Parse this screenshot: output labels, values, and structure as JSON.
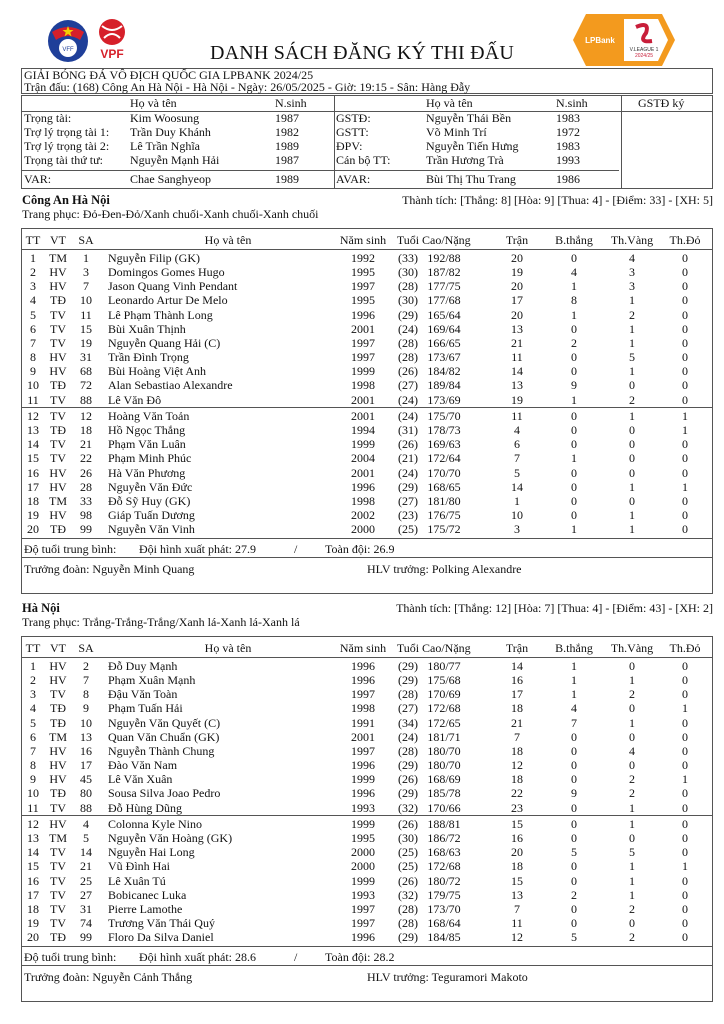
{
  "logos": {
    "vff": "VFF",
    "vpf": "VPF",
    "league_bank": "LPBank",
    "league_name": "V.LEAGUE 1",
    "league_season": "2024/25"
  },
  "title": "DANH SÁCH ĐĂNG KÝ THI ĐẤU",
  "competition": "GIẢI BÓNG ĐÁ VÔ ĐỊCH QUỐC GIA LPBANK 2024/25",
  "match_info": "Trận đấu: (168) Công An Hà Nội - Hà Nội - Ngày: 26/05/2025 - Giờ: 19:15 - Sân: Hàng Đẫy",
  "officials": {
    "headers": {
      "name": "Họ và tên",
      "birth": "N.sinh",
      "sign": "GSTĐ ký"
    },
    "left": [
      {
        "role": "Trọng tài:",
        "name": "Kim Woosung",
        "birth": "1987"
      },
      {
        "role": "Trợ lý trọng tài 1:",
        "name": "Trần Duy Khánh",
        "birth": "1982"
      },
      {
        "role": "Trợ lý trọng tài 2:",
        "name": "Lê Trần Nghĩa",
        "birth": "1989"
      },
      {
        "role": "Trọng tài thứ tư:",
        "name": "Nguyễn Mạnh Hải",
        "birth": "1987"
      },
      {
        "role": "VAR:",
        "name": "Chae Sanghyeop",
        "birth": "1989"
      }
    ],
    "right": [
      {
        "role": "GSTĐ:",
        "name": "Nguyễn Thái Bền",
        "birth": "1983"
      },
      {
        "role": "GSTT:",
        "name": "Võ Minh Trí",
        "birth": "1972"
      },
      {
        "role": "ĐPV:",
        "name": "Nguyễn Tiến Hưng",
        "birth": "1983"
      },
      {
        "role": "Cán bộ TT:",
        "name": "Trần Hương Trà",
        "birth": "1993"
      },
      {
        "role": "AVAR:",
        "name": "Bùi Thị Thu Trang",
        "birth": "1986"
      }
    ]
  },
  "columns": [
    "TT",
    "VT",
    "SA",
    "Họ và tên",
    "Năm sinh",
    "Tuổi",
    "Cao/Nặng",
    "Trận",
    "B.thắng",
    "Th.Vàng",
    "Th.Đỏ"
  ],
  "teams": [
    {
      "name": "Công An Hà Nội",
      "record": "Thành tích: [Thắng: 8] [Hòa: 9] [Thua: 4] - [Điểm: 33] - [XH: 5]",
      "kit": "Trang phục: Đỏ-Đen-Đỏ/Xanh chuối-Xanh chuối-Xanh chuối",
      "starters": [
        [
          "1",
          "TM",
          "1",
          "Nguyễn Filip (GK)",
          "1992",
          "(33)",
          "192/88",
          "20",
          "0",
          "4",
          "0"
        ],
        [
          "2",
          "HV",
          "3",
          "Domingos Gomes Hugo",
          "1995",
          "(30)",
          "187/82",
          "19",
          "4",
          "3",
          "0"
        ],
        [
          "3",
          "HV",
          "7",
          "Jason Quang Vinh Pendant",
          "1997",
          "(28)",
          "177/75",
          "20",
          "1",
          "3",
          "0"
        ],
        [
          "4",
          "TĐ",
          "10",
          "Leonardo Artur De Melo",
          "1995",
          "(30)",
          "177/68",
          "17",
          "8",
          "1",
          "0"
        ],
        [
          "5",
          "TV",
          "11",
          "Lê Phạm Thành Long",
          "1996",
          "(29)",
          "165/64",
          "20",
          "1",
          "2",
          "0"
        ],
        [
          "6",
          "TV",
          "15",
          "Bùi Xuân Thịnh",
          "2001",
          "(24)",
          "169/64",
          "13",
          "0",
          "1",
          "0"
        ],
        [
          "7",
          "TV",
          "19",
          "Nguyễn Quang Hải (C)",
          "1997",
          "(28)",
          "166/65",
          "21",
          "2",
          "1",
          "0"
        ],
        [
          "8",
          "HV",
          "31",
          "Trần Đình Trọng",
          "1997",
          "(28)",
          "173/67",
          "11",
          "0",
          "5",
          "0"
        ],
        [
          "9",
          "HV",
          "68",
          "Bùi Hoàng Việt Anh",
          "1999",
          "(26)",
          "184/82",
          "14",
          "0",
          "1",
          "0"
        ],
        [
          "10",
          "TĐ",
          "72",
          "Alan Sebastiao Alexandre",
          "1998",
          "(27)",
          "189/84",
          "13",
          "9",
          "0",
          "0"
        ],
        [
          "11",
          "TV",
          "88",
          "Lê Văn Đô",
          "2001",
          "(24)",
          "173/69",
          "19",
          "1",
          "2",
          "0"
        ]
      ],
      "subs": [
        [
          "12",
          "TV",
          "12",
          "Hoàng Văn Toản",
          "2001",
          "(24)",
          "175/70",
          "11",
          "0",
          "1",
          "1"
        ],
        [
          "13",
          "TĐ",
          "18",
          "Hồ Ngọc Thắng",
          "1994",
          "(31)",
          "178/73",
          "4",
          "0",
          "0",
          "1"
        ],
        [
          "14",
          "TV",
          "21",
          "Phạm Văn Luân",
          "1999",
          "(26)",
          "169/63",
          "6",
          "0",
          "0",
          "0"
        ],
        [
          "15",
          "TV",
          "22",
          "Phạm Minh Phúc",
          "2004",
          "(21)",
          "172/64",
          "7",
          "1",
          "0",
          "0"
        ],
        [
          "16",
          "HV",
          "26",
          "Hà Văn Phương",
          "2001",
          "(24)",
          "170/70",
          "5",
          "0",
          "0",
          "0"
        ],
        [
          "17",
          "HV",
          "28",
          "Nguyễn Văn Đức",
          "1996",
          "(29)",
          "168/65",
          "14",
          "0",
          "1",
          "1"
        ],
        [
          "18",
          "TM",
          "33",
          "Đỗ Sỹ Huy (GK)",
          "1998",
          "(27)",
          "181/80",
          "1",
          "0",
          "0",
          "0"
        ],
        [
          "19",
          "HV",
          "98",
          "Giáp Tuấn Dương",
          "2002",
          "(23)",
          "176/75",
          "10",
          "0",
          "1",
          "0"
        ],
        [
          "20",
          "TĐ",
          "99",
          "Nguyễn Văn Vinh",
          "2000",
          "(25)",
          "175/72",
          "3",
          "1",
          "1",
          "0"
        ]
      ],
      "avg_label": "Độ tuổi trung bình:",
      "avg_start": "Đội hình xuất phát: 27.9",
      "avg_sep": "/",
      "avg_all": "Toàn đội: 26.9",
      "manager": "Trưởng đoàn: Nguyễn Minh Quang",
      "coach": "HLV trưởng: Polking Alexandre"
    },
    {
      "name": "Hà Nội",
      "record": "Thành tích: [Thắng: 12] [Hòa: 7] [Thua: 4] - [Điểm: 43] - [XH: 2]",
      "kit": "Trang phục: Trắng-Trắng-Trắng/Xanh lá-Xanh lá-Xanh lá",
      "starters": [
        [
          "1",
          "HV",
          "2",
          "Đỗ Duy Mạnh",
          "1996",
          "(29)",
          "180/77",
          "14",
          "1",
          "0",
          "0"
        ],
        [
          "2",
          "HV",
          "7",
          "Phạm Xuân Mạnh",
          "1996",
          "(29)",
          "175/68",
          "16",
          "1",
          "1",
          "0"
        ],
        [
          "3",
          "TV",
          "8",
          "Đậu Văn Toàn",
          "1997",
          "(28)",
          "170/69",
          "17",
          "1",
          "2",
          "0"
        ],
        [
          "4",
          "TĐ",
          "9",
          "Phạm Tuấn Hải",
          "1998",
          "(27)",
          "172/68",
          "18",
          "4",
          "0",
          "1"
        ],
        [
          "5",
          "TĐ",
          "10",
          "Nguyễn Văn Quyết (C)",
          "1991",
          "(34)",
          "172/65",
          "21",
          "7",
          "1",
          "0"
        ],
        [
          "6",
          "TM",
          "13",
          "Quan Văn Chuẩn (GK)",
          "2001",
          "(24)",
          "181/71",
          "7",
          "0",
          "0",
          "0"
        ],
        [
          "7",
          "HV",
          "16",
          "Nguyễn Thành Chung",
          "1997",
          "(28)",
          "180/70",
          "18",
          "0",
          "4",
          "0"
        ],
        [
          "8",
          "HV",
          "17",
          "Đào Văn Nam",
          "1996",
          "(29)",
          "180/70",
          "12",
          "0",
          "0",
          "0"
        ],
        [
          "9",
          "HV",
          "45",
          "Lê Văn Xuân",
          "1999",
          "(26)",
          "168/69",
          "18",
          "0",
          "2",
          "1"
        ],
        [
          "10",
          "TĐ",
          "80",
          "Sousa Silva Joao Pedro",
          "1996",
          "(29)",
          "185/78",
          "22",
          "9",
          "2",
          "0"
        ],
        [
          "11",
          "TV",
          "88",
          "Đỗ Hùng Dũng",
          "1993",
          "(32)",
          "170/66",
          "23",
          "0",
          "1",
          "0"
        ]
      ],
      "subs": [
        [
          "12",
          "HV",
          "4",
          "Colonna Kyle Nino",
          "1999",
          "(26)",
          "188/81",
          "15",
          "0",
          "1",
          "0"
        ],
        [
          "13",
          "TM",
          "5",
          "Nguyễn Văn Hoàng (GK)",
          "1995",
          "(30)",
          "186/72",
          "16",
          "0",
          "0",
          "0"
        ],
        [
          "14",
          "TV",
          "14",
          "Nguyễn Hai Long",
          "2000",
          "(25)",
          "168/63",
          "20",
          "5",
          "5",
          "0"
        ],
        [
          "15",
          "TV",
          "21",
          "Vũ Đình Hai",
          "2000",
          "(25)",
          "172/68",
          "18",
          "0",
          "1",
          "1"
        ],
        [
          "16",
          "TV",
          "25",
          "Lê Xuân Tú",
          "1999",
          "(26)",
          "180/72",
          "15",
          "0",
          "1",
          "0"
        ],
        [
          "17",
          "TV",
          "27",
          "Bobicanec Luka",
          "1993",
          "(32)",
          "179/75",
          "13",
          "2",
          "1",
          "0"
        ],
        [
          "18",
          "TV",
          "31",
          "Pierre Lamothe",
          "1997",
          "(28)",
          "173/70",
          "7",
          "0",
          "2",
          "0"
        ],
        [
          "19",
          "TV",
          "74",
          "Trương Văn Thái Quý",
          "1997",
          "(28)",
          "168/64",
          "11",
          "0",
          "0",
          "0"
        ],
        [
          "20",
          "TĐ",
          "99",
          "Floro Da Silva Daniel",
          "1996",
          "(29)",
          "184/85",
          "12",
          "5",
          "2",
          "0"
        ]
      ],
      "avg_label": "Độ tuổi trung bình:",
      "avg_start": "Đội hình xuất phát: 28.6",
      "avg_sep": "/",
      "avg_all": "Toàn đội: 28.2",
      "manager": "Trưởng đoàn: Nguyễn Cảnh Thắng",
      "coach": "HLV trưởng: Teguramori Makoto"
    }
  ],
  "colors": {
    "vff_blue": "#1f3f99",
    "vff_red": "#d6202a",
    "lpbank_orange": "#f39a1e"
  }
}
